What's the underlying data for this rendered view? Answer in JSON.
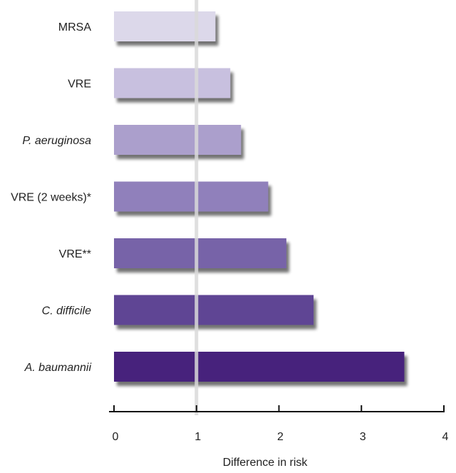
{
  "chart_data": {
    "type": "bar",
    "orientation": "horizontal",
    "categories": [
      "MRSA",
      "VRE",
      "P. aeruginosa",
      "VRE (2 weeks)*",
      "VRE**",
      "C. difficile",
      "A. baumannii"
    ],
    "italic_categories": [
      "P. aeruginosa",
      "C. difficile",
      "A. baumannii"
    ],
    "values": [
      1.23,
      1.41,
      1.54,
      1.87,
      2.09,
      2.42,
      3.52
    ],
    "colors": [
      "#dcd8ea",
      "#c8c0df",
      "#ab9fcc",
      "#9080bb",
      "#7763a8",
      "#5f4594",
      "#46227c"
    ],
    "xlabel": "Difference in risk",
    "xlim": [
      0,
      4
    ],
    "xticks": [
      "0",
      "1",
      "2",
      "3",
      "4"
    ],
    "reference_line": 1,
    "reference_line_color": "#d9d9d9",
    "grid": false
  }
}
